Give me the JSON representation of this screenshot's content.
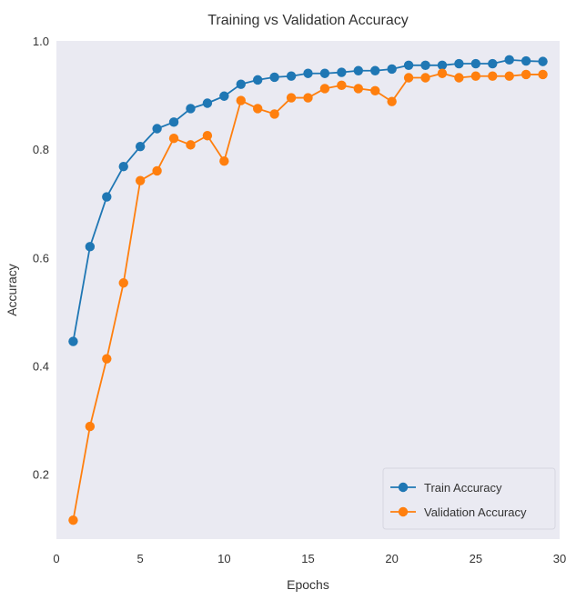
{
  "chart_data": {
    "type": "line",
    "title": "Training vs Validation Accuracy",
    "xlabel": "Epochs",
    "ylabel": "Accuracy",
    "xlim": [
      0,
      30
    ],
    "ylim": [
      0.08,
      1.0
    ],
    "x_ticks": [
      0,
      5,
      10,
      15,
      20,
      25,
      30
    ],
    "y_ticks": [
      0.2,
      0.4,
      0.6,
      0.8,
      1.0
    ],
    "x_tick_labels": [
      "0",
      "5",
      "10",
      "15",
      "20",
      "25",
      "30"
    ],
    "y_tick_labels": [
      "0.2",
      "0.4",
      "0.6",
      "0.8",
      "1.0"
    ],
    "grid": false,
    "background": "#EAEAF2",
    "legend_position": "bottom-right",
    "x": [
      1,
      2,
      3,
      4,
      5,
      6,
      7,
      8,
      9,
      10,
      11,
      12,
      13,
      14,
      15,
      16,
      17,
      18,
      19,
      20,
      21,
      22,
      23,
      24,
      25,
      26,
      27,
      28,
      29
    ],
    "series": [
      {
        "name": "Train Accuracy",
        "color": "#1F77B4",
        "values": [
          0.445,
          0.62,
          0.712,
          0.768,
          0.805,
          0.838,
          0.85,
          0.875,
          0.885,
          0.898,
          0.92,
          0.928,
          0.933,
          0.935,
          0.94,
          0.94,
          0.942,
          0.945,
          0.945,
          0.948,
          0.955,
          0.955,
          0.955,
          0.958,
          0.958,
          0.958,
          0.965,
          0.963,
          0.962
        ]
      },
      {
        "name": "Validation Accuracy",
        "color": "#FF7F0E",
        "values": [
          0.115,
          0.288,
          0.413,
          0.553,
          0.742,
          0.76,
          0.82,
          0.808,
          0.825,
          0.778,
          0.89,
          0.875,
          0.865,
          0.895,
          0.895,
          0.912,
          0.918,
          0.912,
          0.908,
          0.888,
          0.932,
          0.932,
          0.94,
          0.932,
          0.935,
          0.935,
          0.935,
          0.938,
          0.938
        ]
      }
    ]
  }
}
